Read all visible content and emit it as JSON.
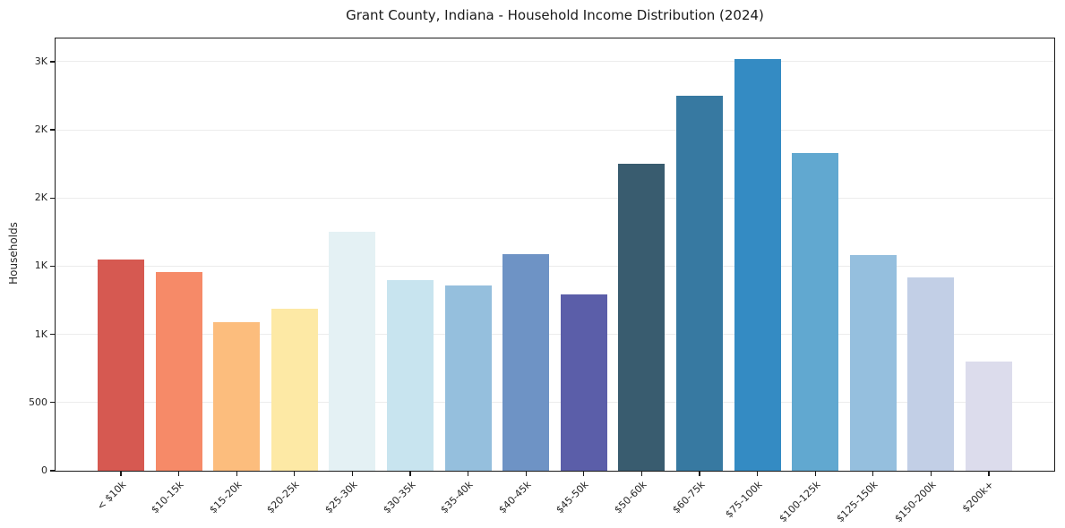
{
  "figure": {
    "title": "Grant County, Indiana - Household Income Distribution (2024)",
    "ylabel": "Households"
  },
  "chart_data": {
    "type": "bar",
    "title": "Grant County, Indiana - Household Income Distribution (2024)",
    "xlabel": "",
    "ylabel": "Households",
    "categories": [
      "< $10k",
      "$10-15k",
      "$15-20k",
      "$20-25k",
      "$25-30k",
      "$30-35k",
      "$35-40k",
      "$40-45k",
      "$45-50k",
      "$50-60k",
      "$60-75k",
      "$75-100k",
      "$100-125k",
      "$125-150k",
      "$150-200k",
      "$200k+"
    ],
    "values": [
      1550,
      1460,
      1090,
      1190,
      1750,
      1400,
      1360,
      1590,
      1290,
      2250,
      2750,
      3020,
      2330,
      1580,
      1420,
      800
    ],
    "bar_colors": [
      "#d65951",
      "#f68a68",
      "#fcbd7d",
      "#fde9a5",
      "#e4f1f4",
      "#c8e4ef",
      "#95bfdd",
      "#6e93c5",
      "#5b5ea9",
      "#395c6f",
      "#3779a1",
      "#348bc3",
      "#61a8d0",
      "#95bfde",
      "#c2cfe6",
      "#dcdcec"
    ],
    "ylim": [
      0,
      3170
    ],
    "yticks": [
      {
        "value": 0,
        "label": "0"
      },
      {
        "value": 500,
        "label": "500"
      },
      {
        "value": 1000,
        "label": "1K"
      },
      {
        "value": 1500,
        "label": "1K"
      },
      {
        "value": 2000,
        "label": "2K"
      },
      {
        "value": 2500,
        "label": "2K"
      },
      {
        "value": 3000,
        "label": "3K"
      }
    ],
    "grid": "horizontal",
    "legend": "none",
    "x_tick_rotation": 45
  },
  "style": {
    "background": "#ffffff",
    "spine_color": "#1a1a1a",
    "grid_color": "#ececec",
    "text_color": "#262626"
  }
}
